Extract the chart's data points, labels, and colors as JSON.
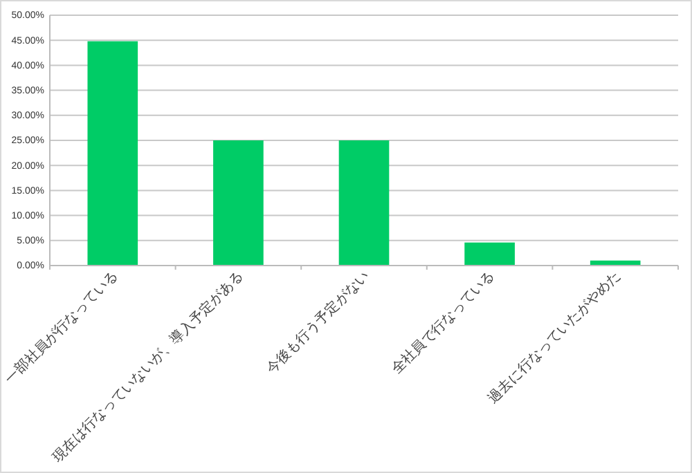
{
  "chart_data": {
    "type": "bar",
    "categories": [
      "一部社員が行なっている",
      "現在は行なっていないが、導入予定がある",
      "今後も行う予定がない",
      "全社員で行なっている",
      "過去に行なっていたがやめた"
    ],
    "values": [
      44.8,
      25,
      25,
      4.6,
      1
    ],
    "color": "#00cc66",
    "ylim": [
      0,
      50
    ],
    "yticks": [
      {
        "value": 0,
        "label": "0.00%"
      },
      {
        "value": 5,
        "label": "5.00%"
      },
      {
        "value": 10,
        "label": "10.00%"
      },
      {
        "value": 15,
        "label": "15.00%"
      },
      {
        "value": 20,
        "label": "20.00%"
      },
      {
        "value": 25,
        "label": "25.00%"
      },
      {
        "value": 30,
        "label": "30.00%"
      },
      {
        "value": 35,
        "label": "35.00%"
      },
      {
        "value": 40,
        "label": "40.00%"
      },
      {
        "value": 45,
        "label": "45.00%"
      },
      {
        "value": 50,
        "label": "50.00%"
      }
    ],
    "grid": "y"
  }
}
